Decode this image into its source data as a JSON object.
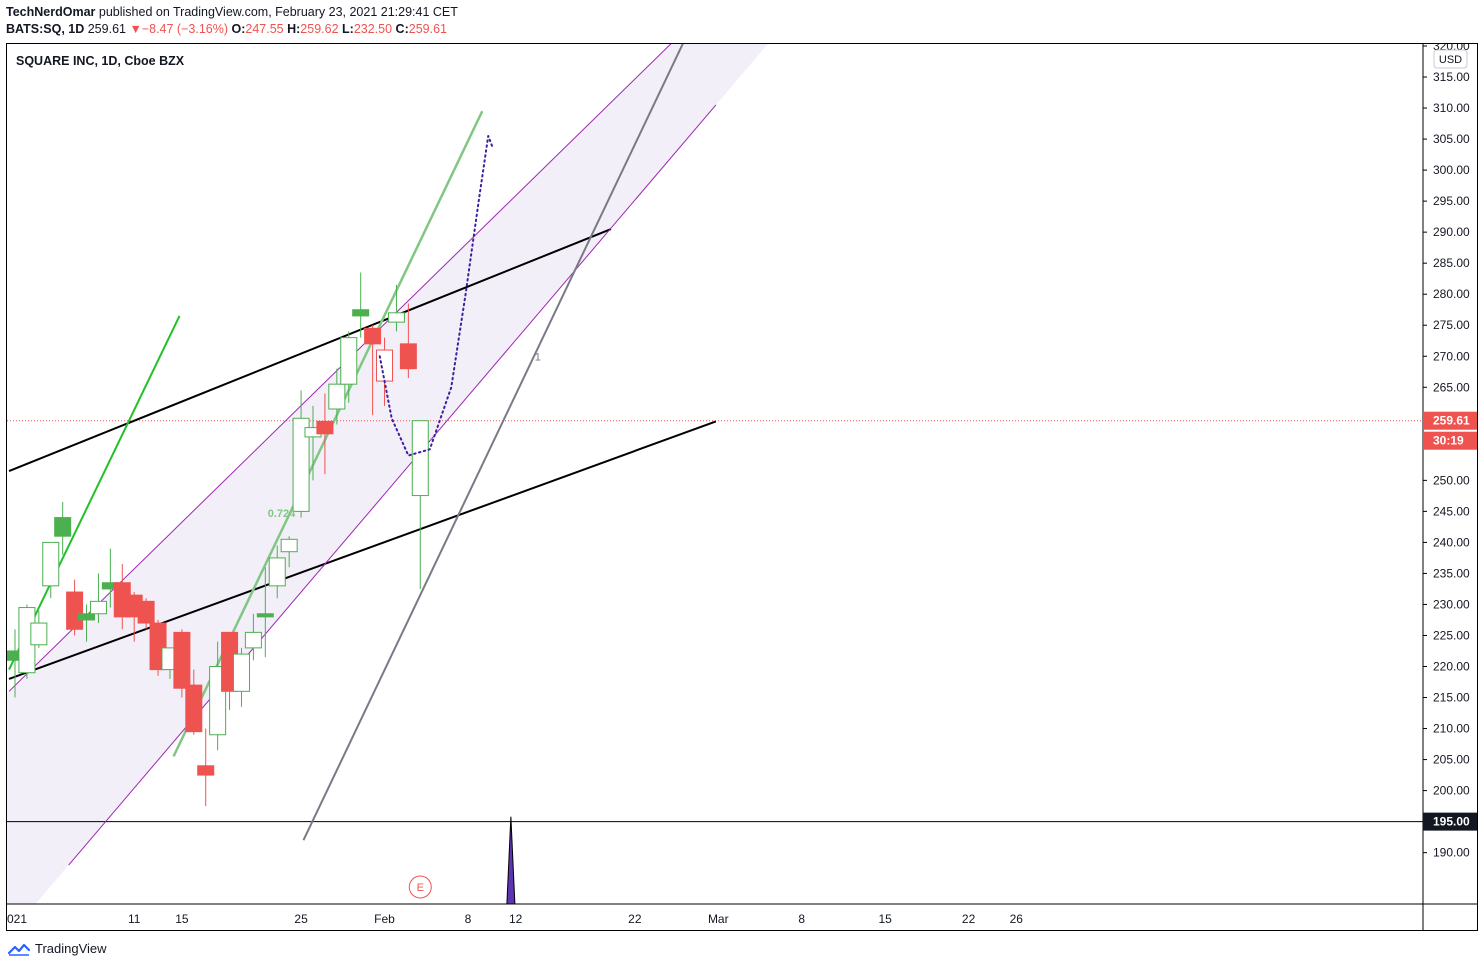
{
  "header": {
    "author": "TechNerdOmar",
    "published_text": "published on TradingView.com, February 23, 2021 21:29:41 CET",
    "symbol": "BATS:SQ, 1D",
    "last": "259.61",
    "change_arrow": "▼",
    "change": "−8.47 (−3.16%)",
    "open_label": "O:",
    "open": "247.55",
    "high_label": "H:",
    "high": "259.62",
    "low_label": "L:",
    "low": "232.50",
    "close_label": "C:",
    "close": "259.61"
  },
  "chart_title": "SQUARE INC, 1D, Cboe BZX",
  "currency_badge": "USD",
  "price_tag": "259.61",
  "countdown_tag": "30:19",
  "level_tag": "195.00",
  "earnings_marker": "E",
  "fib_label": "0.724",
  "pitchfork_label": "1",
  "footer": {
    "brand": "TradingView",
    "logo_icon": "tradingview-logo-icon"
  },
  "colors": {
    "up": "#4caf50",
    "down": "#ef5350",
    "channel": "#9c27b0",
    "channel_fill": "#f3eff9",
    "trend_green": "#22c02a",
    "fib_green": "#81c784",
    "forecast_path": "#3f1fa0"
  },
  "chart_data": {
    "type": "candlestick",
    "title": "SQUARE INC, 1D, Cboe BZX",
    "currency": "USD",
    "ylim": [
      189,
      326
    ],
    "y_ticks": [
      190,
      195,
      200,
      205,
      210,
      215,
      220,
      225,
      230,
      235,
      240,
      245,
      250,
      255,
      260,
      265,
      270,
      275,
      280,
      285,
      290,
      295,
      300,
      305,
      310,
      315,
      320
    ],
    "x_tick_labels": [
      {
        "label": "021",
        "day": 0
      },
      {
        "label": "11",
        "day": 10
      },
      {
        "label": "15",
        "day": 14
      },
      {
        "label": "25",
        "day": 24
      },
      {
        "label": "Feb",
        "day": 31
      },
      {
        "label": "8",
        "day": 38
      },
      {
        "label": "12",
        "day": 42
      },
      {
        "label": "22",
        "day": 52
      },
      {
        "label": "Mar",
        "day": 59
      },
      {
        "label": "8",
        "day": 66
      },
      {
        "label": "15",
        "day": 73
      },
      {
        "label": "22",
        "day": 80
      },
      {
        "label": "26",
        "day": 84
      }
    ],
    "candles": [
      {
        "day": 0,
        "o": 221,
        "h": 226,
        "l": 215,
        "c": 222.5,
        "fill": "solid"
      },
      {
        "day": 1,
        "o": 219,
        "h": 230,
        "l": 218,
        "c": 229.5,
        "fill": "hollow"
      },
      {
        "day": 2,
        "o": 223.5,
        "h": 229,
        "l": 223,
        "c": 227,
        "fill": "hollow"
      },
      {
        "day": 3,
        "o": 233,
        "h": 240,
        "l": 231,
        "c": 240,
        "fill": "hollow"
      },
      {
        "day": 4,
        "o": 241,
        "h": 246.5,
        "l": 238,
        "c": 244,
        "fill": "solid"
      },
      {
        "day": 5,
        "o": 232,
        "h": 234,
        "l": 225,
        "c": 226,
        "fill": "solid"
      },
      {
        "day": 6,
        "o": 227.5,
        "h": 230,
        "l": 224,
        "c": 228.5,
        "fill": "solid"
      },
      {
        "day": 7,
        "o": 228.5,
        "h": 235,
        "l": 227,
        "c": 230.5,
        "fill": "hollow"
      },
      {
        "day": 8,
        "o": 232.5,
        "h": 239,
        "l": 229.5,
        "c": 233.5,
        "fill": "solid"
      },
      {
        "day": 9,
        "o": 233.5,
        "h": 236.5,
        "l": 226,
        "c": 228,
        "fill": "solid"
      },
      {
        "day": 10,
        "o": 231.5,
        "h": 232,
        "l": 224,
        "c": 228,
        "fill": "solid"
      },
      {
        "day": 11,
        "o": 230.5,
        "h": 231,
        "l": 226,
        "c": 227,
        "fill": "solid"
      },
      {
        "day": 12,
        "o": 227,
        "h": 227.5,
        "l": 218.5,
        "c": 219.5,
        "fill": "solid"
      },
      {
        "day": 13,
        "o": 219.5,
        "h": 223,
        "l": 218,
        "c": 223,
        "fill": "hollow"
      },
      {
        "day": 14,
        "o": 225.5,
        "h": 226,
        "l": 215,
        "c": 216.5,
        "fill": "solid"
      },
      {
        "day": 15,
        "o": 217,
        "h": 219.5,
        "l": 209,
        "c": 209.5,
        "fill": "solid"
      },
      {
        "day": 16,
        "o": 204,
        "h": 210,
        "l": 197.5,
        "c": 202.5,
        "fill": "solid"
      },
      {
        "day": 17,
        "o": 209,
        "h": 224,
        "l": 206.5,
        "c": 220,
        "fill": "hollow"
      },
      {
        "day": 18,
        "o": 225.5,
        "h": 225.5,
        "l": 213,
        "c": 216,
        "fill": "solid"
      },
      {
        "day": 19,
        "o": 216,
        "h": 223,
        "l": 213.5,
        "c": 222,
        "fill": "hollow"
      },
      {
        "day": 20,
        "o": 223,
        "h": 228.5,
        "l": 221,
        "c": 225.5,
        "fill": "hollow"
      },
      {
        "day": 21,
        "o": 228,
        "h": 236,
        "l": 221.5,
        "c": 228.5,
        "fill": "solid"
      },
      {
        "day": 22,
        "o": 233,
        "h": 239.5,
        "l": 231,
        "c": 237.5,
        "fill": "hollow"
      },
      {
        "day": 23,
        "o": 238.5,
        "h": 241,
        "l": 236,
        "c": 240.5,
        "fill": "hollow"
      },
      {
        "day": 24,
        "o": 245,
        "h": 264.5,
        "l": 244,
        "c": 260,
        "fill": "hollow"
      },
      {
        "day": 25,
        "o": 257,
        "h": 262,
        "l": 250,
        "c": 258.5,
        "fill": "hollow"
      },
      {
        "day": 26,
        "o": 259.5,
        "h": 264,
        "l": 251,
        "c": 257.5,
        "fill": "solid"
      },
      {
        "day": 27,
        "o": 261.5,
        "h": 268,
        "l": 259,
        "c": 265.5,
        "fill": "hollow"
      },
      {
        "day": 28,
        "o": 265.5,
        "h": 274,
        "l": 262.5,
        "c": 273,
        "fill": "hollow"
      },
      {
        "day": 29,
        "o": 276.5,
        "h": 283.5,
        "l": 273,
        "c": 277.5,
        "fill": "solid"
      },
      {
        "day": 30,
        "o": 274.5,
        "h": 275,
        "l": 260.5,
        "c": 272,
        "fill": "solid"
      },
      {
        "day": 31,
        "o": 271,
        "h": 273,
        "l": 262,
        "c": 266,
        "fill": "hollow"
      },
      {
        "day": 32,
        "o": 275.5,
        "h": 281.5,
        "l": 274,
        "c": 277,
        "fill": "hollow"
      },
      {
        "day": 33,
        "o": 272,
        "h": 278.5,
        "l": 266.5,
        "c": 268,
        "fill": "solid"
      },
      {
        "day": 34,
        "o": 247.55,
        "h": 259.62,
        "l": 232.5,
        "c": 259.61,
        "fill": "hollow"
      }
    ],
    "horizontal_levels": [
      195,
      259.61
    ],
    "lines": [
      {
        "name": "upper-trendline",
        "from": {
          "day": -0.5,
          "price": 251.5
        },
        "to": {
          "day": 50,
          "price": 290.5
        }
      },
      {
        "name": "lower-trendline",
        "from": {
          "day": -0.5,
          "price": 218
        },
        "to": {
          "day": 58.8,
          "price": 259.5
        }
      },
      {
        "name": "channel-upper",
        "from": {
          "day": -0.5,
          "price": 216
        },
        "to": {
          "day": 57.5,
          "price": 325
        }
      },
      {
        "name": "channel-lower",
        "from": {
          "day": 4.5,
          "price": 188
        },
        "to": {
          "day": 58.8,
          "price": 310.5
        }
      },
      {
        "name": "steep-green-trendline",
        "from": {
          "day": -0.5,
          "price": 219.5
        },
        "to": {
          "day": 13.8,
          "price": 276.5
        }
      },
      {
        "name": "fib-green-line",
        "from": {
          "day": 13.3,
          "price": 205.5
        },
        "to": {
          "day": 39.2,
          "price": 309.5
        }
      },
      {
        "name": "pitchfork-gray-line",
        "from": {
          "day": 24.2,
          "price": 192
        },
        "to": {
          "day": 57.3,
          "price": 325.5
        }
      }
    ],
    "forecast_path": [
      {
        "day": 30.6,
        "price": 270
      },
      {
        "day": 31.6,
        "price": 260
      },
      {
        "day": 33.0,
        "price": 254
      },
      {
        "day": 34.8,
        "price": 255
      },
      {
        "day": 36.6,
        "price": 265
      },
      {
        "day": 37.8,
        "price": 280
      },
      {
        "day": 38.9,
        "price": 295
      },
      {
        "day": 39.7,
        "price": 305.5
      },
      {
        "day": 40.1,
        "price": 303.5
      }
    ],
    "earnings_day": 34,
    "spike_day": 41.6
  }
}
